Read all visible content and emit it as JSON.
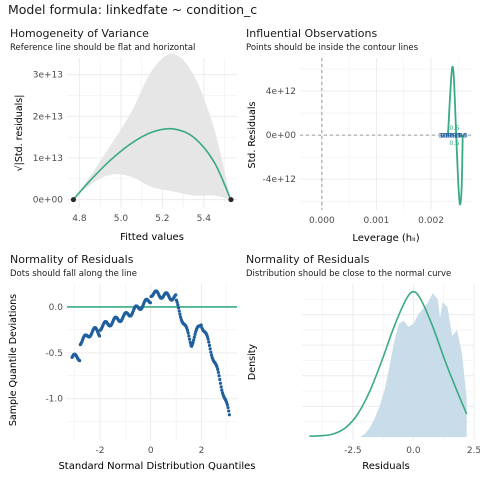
{
  "figure": {
    "title": "Model formula: linkedfate ~ condition_c",
    "colors": {
      "line": "#3aaa85",
      "point": "#1f5f9e",
      "band": "#e6e6e6",
      "density_fill": "#c9dcea",
      "reference": "#9a9a9a",
      "grid": "#ececec",
      "panel_bg": "#ffffff"
    }
  },
  "chart_data": [
    {
      "type": "scatter",
      "title": "Homogeneity of Variance",
      "subtitle": "Reference line should be flat and horizontal",
      "xlabel": "Fitted values",
      "ylabel": "√|Std. residuals|",
      "xlim": [
        4.74,
        5.56
      ],
      "ylim": [
        -2000000000000.0,
        34000000000000.0
      ],
      "xticks": [
        4.8,
        5.0,
        5.2,
        5.4
      ],
      "xtick_labels": [
        "4.8",
        "5.0",
        "5.2",
        "5.4"
      ],
      "yticks": [
        0,
        10000000000000.0,
        20000000000000.0,
        30000000000000.0
      ],
      "ytick_labels": [
        "0e+00",
        "1e+13",
        "2e+13",
        "3e+13"
      ],
      "points": [
        [
          4.77,
          0
        ],
        [
          4.772,
          0
        ],
        [
          5.53,
          0
        ],
        [
          5.532,
          0
        ]
      ],
      "smooth": [
        [
          4.77,
          0
        ],
        [
          4.85,
          4500000000000.0
        ],
        [
          4.95,
          9500000000000.0
        ],
        [
          5.05,
          13500000000000.0
        ],
        [
          5.15,
          16200000000000.0
        ],
        [
          5.25,
          17000000000000.0
        ],
        [
          5.35,
          15000000000000.0
        ],
        [
          5.45,
          9000000000000.0
        ],
        [
          5.53,
          0
        ]
      ],
      "band_upper": [
        [
          4.77,
          0
        ],
        [
          4.85,
          5500000000000.0
        ],
        [
          4.95,
          13000000000000.0
        ],
        [
          5.05,
          21000000000000.0
        ],
        [
          5.15,
          31000000000000.0
        ],
        [
          5.25,
          35000000000000.0
        ],
        [
          5.35,
          30000000000000.0
        ],
        [
          5.45,
          17000000000000.0
        ],
        [
          5.53,
          0
        ]
      ],
      "band_lower": [
        [
          4.77,
          0
        ],
        [
          4.85,
          3500000000000.0
        ],
        [
          4.95,
          6000000000000.0
        ],
        [
          5.05,
          5500000000000.0
        ],
        [
          5.15,
          3000000000000.0
        ],
        [
          5.25,
          2000000000000.0
        ],
        [
          5.35,
          1000000000000.0
        ],
        [
          5.45,
          1000000000000.0
        ],
        [
          5.53,
          0
        ]
      ],
      "grid": true
    },
    {
      "type": "scatter",
      "title": "Influential Observations",
      "subtitle": "Points should be inside the contour lines",
      "xlabel": "Leverage (hᵢᵢ)",
      "ylabel": "Std. Residuals",
      "xlim": [
        -0.0004,
        0.00275
      ],
      "ylim": [
        -6800000000000.0,
        7000000000000.0
      ],
      "xticks": [
        0,
        0.001,
        0.002
      ],
      "xtick_labels": [
        "0.000",
        "0.001",
        "0.002"
      ],
      "yticks": [
        -4000000000000.0,
        0,
        4000000000000.0
      ],
      "ytick_labels": [
        "-4e+12",
        "0e+00",
        "4e+12"
      ],
      "contour_top": [
        [
          0.00231,
          0
        ],
        [
          0.00236,
          4500000000000.0
        ],
        [
          0.00239,
          6200000000000.0
        ],
        [
          0.00242,
          5000000000000.0
        ],
        [
          0.00246,
          0
        ]
      ],
      "contour_bottom": [
        [
          0.00246,
          0
        ],
        [
          0.0025,
          -4500000000000.0
        ],
        [
          0.00253,
          -6300000000000.0
        ],
        [
          0.00256,
          -4800000000000.0
        ],
        [
          0.00258,
          0
        ]
      ],
      "contour_labels": [
        {
          "text": "0.5",
          "x": 0.00243,
          "y": 650000000000.0
        },
        {
          "text": "0.5",
          "x": 0.00243,
          "y": -700000000000.0
        }
      ],
      "point_labels": [
        {
          "text": "303",
          "x": 0.00226,
          "y": 0
        },
        {
          "text": "298",
          "x": 0.0023,
          "y": 0
        },
        {
          "text": "95",
          "x": 0.00247,
          "y": 0
        },
        {
          "text": "188",
          "x": 0.00254,
          "y": 0
        }
      ],
      "reference_x": 0,
      "reference_y": 0,
      "grid": true
    },
    {
      "type": "scatter",
      "title": "Normality of Residuals",
      "subtitle": "Dots should fall along the line",
      "xlabel": "Standard Normal Distribution Quantiles",
      "ylabel": "Sample Quantile Deviations",
      "xlim": [
        -3.3,
        3.4
      ],
      "ylim": [
        -1.45,
        0.25
      ],
      "xticks": [
        -2,
        0,
        2
      ],
      "xtick_labels": [
        "-2",
        "0",
        "2"
      ],
      "yticks": [
        -1.0,
        -0.5,
        0.0
      ],
      "ytick_labels": [
        "-1.0",
        "-0.5",
        "0.0"
      ],
      "reference_y": 0,
      "grid": true
    },
    {
      "type": "area",
      "title": "Normality of Residuals",
      "subtitle": "Distribution should be close to the normal curve",
      "xlabel": "Residuals",
      "ylabel": "Density",
      "xlim": [
        -4.6,
        2.5
      ],
      "ylim": [
        -0.02,
        1.0
      ],
      "xticks": [
        -2.5,
        0.0,
        2.5
      ],
      "xtick_labels": [
        "-2.5",
        "0.0",
        "2.5"
      ],
      "density": [
        [
          -2.2,
          0
        ],
        [
          -2.0,
          0.02
        ],
        [
          -1.8,
          0.06
        ],
        [
          -1.6,
          0.12
        ],
        [
          -1.4,
          0.2
        ],
        [
          -1.2,
          0.3
        ],
        [
          -1.0,
          0.45
        ],
        [
          -0.8,
          0.62
        ],
        [
          -0.6,
          0.74
        ],
        [
          -0.4,
          0.76
        ],
        [
          -0.2,
          0.72
        ],
        [
          0.0,
          0.74
        ],
        [
          0.2,
          0.8
        ],
        [
          0.4,
          0.84
        ],
        [
          0.6,
          0.88
        ],
        [
          0.8,
          0.94
        ],
        [
          1.0,
          0.9
        ],
        [
          1.1,
          0.78
        ],
        [
          1.2,
          0.88
        ],
        [
          1.4,
          0.85
        ],
        [
          1.6,
          0.66
        ],
        [
          1.8,
          0.7
        ],
        [
          2.0,
          0.55
        ],
        [
          2.2,
          0.25
        ],
        [
          2.2,
          0
        ]
      ],
      "normal_curve": [
        [
          -4.3,
          0.005
        ],
        [
          -3.8,
          0.008
        ],
        [
          -3.3,
          0.02
        ],
        [
          -2.8,
          0.06
        ],
        [
          -2.3,
          0.15
        ],
        [
          -1.8,
          0.3
        ],
        [
          -1.3,
          0.5
        ],
        [
          -0.8,
          0.72
        ],
        [
          -0.3,
          0.9
        ],
        [
          0.0,
          0.95
        ],
        [
          0.3,
          0.9
        ],
        [
          0.8,
          0.72
        ],
        [
          1.3,
          0.5
        ],
        [
          1.8,
          0.3
        ],
        [
          2.2,
          0.15
        ]
      ],
      "grid": true
    }
  ]
}
